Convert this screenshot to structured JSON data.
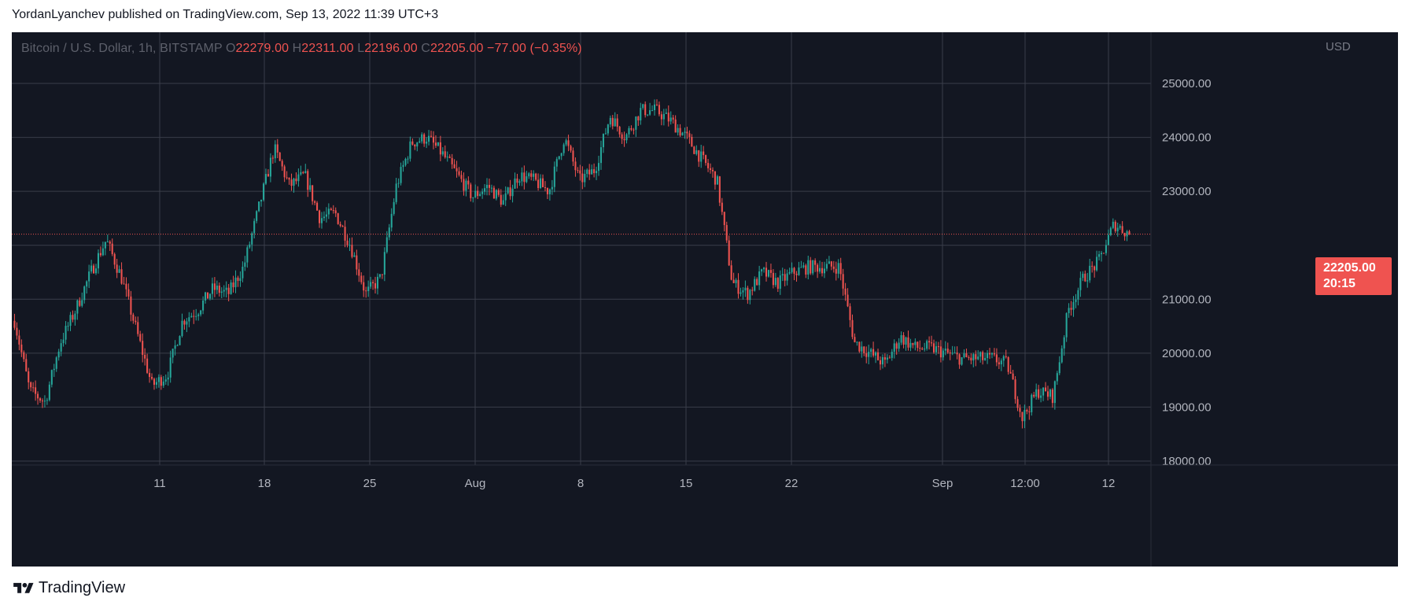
{
  "publish_line": "YordanLyanchev published on TradingView.com, Sep 13, 2022 11:39 UTC+3",
  "symbol": "Bitcoin / U.S. Dollar, 1h, BITSTAMP",
  "ohlc": {
    "o_label": "O",
    "o": "22279.00",
    "h_label": "H",
    "h": "22311.00",
    "l_label": "L",
    "l": "22196.00",
    "c_label": "C",
    "c": "22205.00",
    "change": "−77.00 (−0.35%)"
  },
  "currency": "USD",
  "last_price": "22205.00",
  "countdown": "20:15",
  "brand": "TradingView",
  "colors": {
    "background": "#131722",
    "up": "#26a69a",
    "down": "#ef5350",
    "grid": "#3a3e4a",
    "text": "#b2b5be"
  },
  "chart_data": {
    "type": "candlestick",
    "interval": "1h",
    "y_axis": {
      "label": "USD",
      "min": 18000,
      "max": 25000,
      "range": [
        17800,
        25800
      ],
      "ticks": [
        25000,
        24000,
        23000,
        22000,
        21000,
        20000,
        19000,
        18000
      ],
      "tick_labels": [
        "25000.00",
        "24000.00",
        "23000.00",
        "",
        "21000.00",
        "20000.00",
        "19000.00",
        "18000.00"
      ]
    },
    "x_axis": {
      "tick_labels": [
        "11",
        "18",
        "25",
        "Aug",
        "8",
        "15",
        "22",
        "Sep",
        "12:00",
        "12"
      ]
    },
    "grid": true,
    "last_price_line": 22205,
    "price_path": {
      "description_points": [
        [
          "Jul 4",
          20600
        ],
        [
          "Jul 5",
          19300
        ],
        [
          "Jul 7",
          19100
        ],
        [
          "Jul 8",
          20200
        ],
        [
          "Jul 9",
          20800
        ],
        [
          "Jul 10",
          21500
        ],
        [
          "Jul 10 12h",
          22100
        ],
        [
          "Jul 11",
          21400
        ],
        [
          "Jul 12",
          20400
        ],
        [
          "Jul 13",
          19400
        ],
        [
          "Jul 13 12h",
          19600
        ],
        [
          "Jul 14",
          20600
        ],
        [
          "Jul 15",
          20800
        ],
        [
          "Jul 16",
          21200
        ],
        [
          "Jul 17",
          21100
        ],
        [
          "Jul 18",
          21600
        ],
        [
          "Jul 19",
          22700
        ],
        [
          "Jul 20",
          23800
        ],
        [
          "Jul 21",
          23100
        ],
        [
          "Jul 22",
          23300
        ],
        [
          "Jul 23",
          22500
        ],
        [
          "Jul 24",
          22600
        ],
        [
          "Jul 25",
          22000
        ],
        [
          "Jul 26",
          21100
        ],
        [
          "Jul 27",
          21400
        ],
        [
          "Jul 28",
          23100
        ],
        [
          "Jul 29",
          23900
        ],
        [
          "Jul 30",
          24000
        ],
        [
          "Jul 31",
          23700
        ],
        [
          "Aug 1",
          23300
        ],
        [
          "Aug 2",
          22900
        ],
        [
          "Aug 3",
          23100
        ],
        [
          "Aug 4",
          22800
        ],
        [
          "Aug 5",
          23300
        ],
        [
          "Aug 6",
          23200
        ],
        [
          "Aug 7",
          23000
        ],
        [
          "Aug 8",
          24000
        ],
        [
          "Aug 9",
          23200
        ],
        [
          "Aug 10",
          23400
        ],
        [
          "Aug 11",
          24400
        ],
        [
          "Aug 12",
          24000
        ],
        [
          "Aug 13",
          24500
        ],
        [
          "Aug 14",
          24500
        ],
        [
          "Aug 15",
          24300
        ],
        [
          "Aug 16",
          24000
        ],
        [
          "Aug 17",
          23600
        ],
        [
          "Aug 18",
          23200
        ],
        [
          "Aug 19",
          21300
        ],
        [
          "Aug 20",
          21100
        ],
        [
          "Aug 21",
          21500
        ],
        [
          "Aug 22",
          21300
        ],
        [
          "Aug 23",
          21500
        ],
        [
          "Aug 24",
          21600
        ],
        [
          "Aug 25",
          21600
        ],
        [
          "Aug 26",
          21600
        ],
        [
          "Aug 27",
          20200
        ],
        [
          "Aug 28",
          20000
        ],
        [
          "Aug 29",
          19800
        ],
        [
          "Aug 30",
          20300
        ],
        [
          "Aug 31",
          20100
        ],
        [
          "Sep 1",
          20100
        ],
        [
          "Sep 2",
          20000
        ],
        [
          "Sep 3",
          19900
        ],
        [
          "Sep 4",
          19900
        ],
        [
          "Sep 5",
          19900
        ],
        [
          "Sep 6",
          19800
        ],
        [
          "Sep 7",
          18800
        ],
        [
          "Sep 8",
          19300
        ],
        [
          "Sep 9",
          19200
        ],
        [
          "Sep 9 12h",
          20800
        ],
        [
          "Sep 10",
          21400
        ],
        [
          "Sep 11",
          21700
        ],
        [
          "Sep 12",
          22400
        ],
        [
          "Sep 13",
          22205
        ]
      ]
    }
  }
}
